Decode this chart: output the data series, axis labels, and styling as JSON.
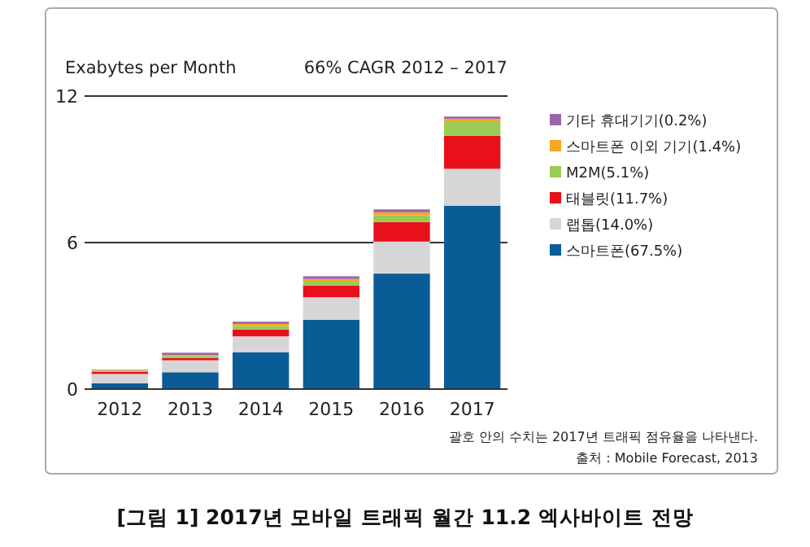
{
  "chart_data": {
    "type": "bar",
    "stacked": true,
    "title": "[그림 1] 2017년 모바일 트래픽 월간 11.2 엑사바이트 전망",
    "ylabel": "Exabytes per Month",
    "categories": [
      "2012",
      "2013",
      "2014",
      "2015",
      "2016",
      "2017"
    ],
    "series": [
      {
        "name": "스마트폰(67.5%)",
        "color": "#0a5c96",
        "values": [
          0.24,
          0.69,
          1.51,
          2.84,
          4.73,
          7.51
        ]
      },
      {
        "name": "랩톱(14.0%)",
        "color": "#d6d6d6",
        "values": [
          0.38,
          0.49,
          0.65,
          0.92,
          1.31,
          1.51
        ]
      },
      {
        "name": "태블릿(11.7%)",
        "color": "#e8101a",
        "values": [
          0.08,
          0.09,
          0.28,
          0.48,
          0.8,
          1.36
        ]
      },
      {
        "name": "M2M(5.1%)",
        "color": "#99cc55",
        "values": [
          0.05,
          0.09,
          0.14,
          0.16,
          0.27,
          0.55
        ]
      },
      {
        "name": "스마트폰 이외 기기(1.4%)",
        "color": "#f5a623",
        "values": [
          0.03,
          0.04,
          0.09,
          0.11,
          0.13,
          0.14
        ]
      },
      {
        "name": "기타 휴대기기(0.2%)",
        "color": "#9966aa",
        "values": [
          0.02,
          0.09,
          0.09,
          0.11,
          0.12,
          0.09
        ]
      }
    ],
    "ylim": [
      0,
      12
    ],
    "yticks": [
      0,
      6,
      12
    ],
    "grid": "y",
    "legend": "right",
    "annotations": [
      "66% CAGR 2012 – 2017",
      "괄호 안의 수치는 2017년 트래픽 점유율을 나타낸다.",
      "출처 : Mobile Forecast, 2013"
    ]
  }
}
